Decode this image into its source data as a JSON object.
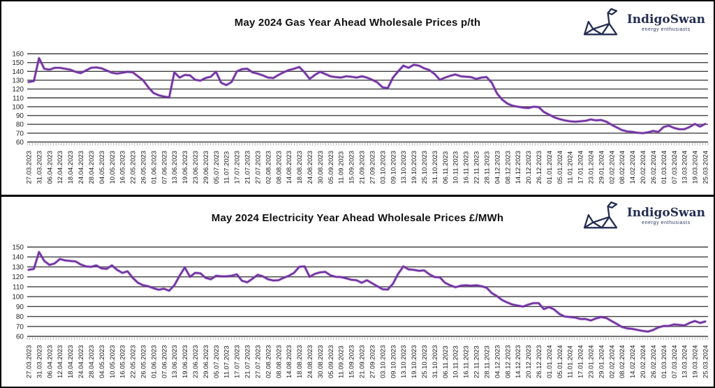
{
  "panels": [
    {
      "title": "May 2024 Gas Year Ahead Wholesale Prices p/th",
      "logo": {
        "name": "IndigoSwan",
        "tagline": "energy enthusiasts"
      }
    },
    {
      "title": "May 2024 Electricity Year Ahead Wholesale Prices £/MWh",
      "logo": {
        "name": "IndigoSwan",
        "tagline": "energy enthusiasts"
      }
    }
  ],
  "colors": {
    "line": "#7030A0",
    "line_halo": "#8a4fb5",
    "gridline": "#404040",
    "tick": "#9a9a9a",
    "axis_text": "#262626",
    "logo_navy": "#242e52",
    "title_text": "#111111"
  },
  "chart_data": [
    {
      "type": "line",
      "title": "May 2024 Gas Year Ahead Wholesale Prices p/th",
      "unit": "p/th",
      "legend_position": "none",
      "grid": "horizontal",
      "ylim": [
        60,
        160
      ],
      "yticks": [
        160,
        150,
        140,
        130,
        120,
        110,
        100,
        90,
        80,
        70,
        60
      ],
      "points_per_label_interval": 2,
      "x_labels": [
        "27.03.2023",
        "31.03.2023",
        "06.04.2023",
        "12.04.2023",
        "18.04.2023",
        "24.04.2023",
        "28.04.2023",
        "04.05.2023",
        "10.05.2023",
        "16.05.2023",
        "22.05.2023",
        "26.05.2023",
        "01.06.2023",
        "07.06.2023",
        "13.06.2023",
        "19.06.2023",
        "23.06.2023",
        "29.06.2023",
        "05.07.2023",
        "11.07.2023",
        "17.07.2023",
        "21.07.2023",
        "27.07.2023",
        "02.08.2023",
        "08.08.2023",
        "14.08.2023",
        "18.08.2023",
        "24.08.2023",
        "30.08.2023",
        "05.09.2023",
        "11.09.2023",
        "15.09.2023",
        "21.09.2023",
        "27.09.2023",
        "03.10.2023",
        "09.10.2023",
        "13.10.2023",
        "19.10.2023",
        "25.10.2023",
        "31.10.2023",
        "06.11.2023",
        "10.11.2023",
        "16.11.2023",
        "22.11.2023",
        "28.11.2023",
        "04.12.2023",
        "08.12.2023",
        "14.12.2023",
        "20.12.2023",
        "26.12.2023",
        "01.01.2024",
        "05.01.2024",
        "11.01.2024",
        "17.01.2024",
        "23.01.2024",
        "29.01.2024",
        "02.02.2024",
        "08.02.2024",
        "14.02.2024",
        "20.02.2024",
        "26.02.2024",
        "01.03.2024",
        "07.03.2024",
        "13.03.2024",
        "19.03.2024",
        "25.03.2024"
      ],
      "series": [
        {
          "name": "Gas Year Ahead p/th",
          "color": "#7030A0",
          "values": [
            128,
            129,
            155,
            143,
            142,
            144,
            144,
            143,
            142,
            139.5,
            138,
            141,
            144,
            144.5,
            143.5,
            141,
            138.5,
            137.5,
            138.5,
            139.5,
            139,
            134.5,
            130,
            122,
            115.5,
            113,
            111.5,
            110.5,
            139,
            133,
            136,
            135.5,
            130.5,
            129.5,
            132.5,
            134,
            139.5,
            127,
            124.5,
            128,
            140,
            142.5,
            143,
            139,
            137.5,
            135.5,
            133,
            132.5,
            136,
            139,
            141.5,
            143,
            145,
            139,
            131.5,
            136,
            139.5,
            137,
            134.5,
            133.5,
            133,
            134.5,
            134,
            133,
            134.5,
            133,
            130.5,
            127.5,
            122,
            121,
            133,
            140,
            146.5,
            144,
            147.5,
            146.5,
            143.5,
            141.5,
            137,
            130.5,
            133,
            135,
            136.5,
            134.5,
            134,
            133.5,
            131.5,
            133,
            133.5,
            127,
            115,
            108,
            103.5,
            101,
            100,
            99,
            98.5,
            100,
            99.5,
            94,
            91,
            88,
            86,
            84.5,
            83.5,
            83,
            83.5,
            84,
            85.5,
            84.5,
            85,
            83,
            79.5,
            76.5,
            73.5,
            72,
            71.5,
            70.5,
            70,
            71,
            72.5,
            71.5,
            77,
            78.5,
            76,
            74.5,
            74.5,
            77,
            80.5,
            77.5,
            80.5
          ]
        }
      ]
    },
    {
      "type": "line",
      "title": "May 2024 Electricity Year Ahead Wholesale Prices £/MWh",
      "unit": "£/MWh",
      "legend_position": "none",
      "grid": "horizontal",
      "ylim": [
        60,
        150
      ],
      "yticks": [
        150,
        140,
        130,
        120,
        110,
        100,
        90,
        80,
        70,
        60
      ],
      "points_per_label_interval": 2,
      "x_labels": [
        "27.03.2023",
        "31.03.2023",
        "06.04.2023",
        "12.04.2023",
        "18.04.2023",
        "24.04.2023",
        "28.04.2023",
        "04.05.2023",
        "10.05.2023",
        "16.05.2023",
        "22.05.2023",
        "26.05.2023",
        "01.06.2023",
        "07.06.2023",
        "13.06.2023",
        "19.06.2023",
        "23.06.2023",
        "29.06.2023",
        "05.07.2023",
        "11.07.2023",
        "17.07.2023",
        "21.07.2023",
        "27.07.2023",
        "02.08.2023",
        "08.08.2023",
        "14.08.2023",
        "18.08.2023",
        "24.08.2023",
        "30.08.2023",
        "05.09.2023",
        "11.09.2023",
        "15.09.2023",
        "21.09.2023",
        "27.09.2023",
        "03.10.2023",
        "09.10.2023",
        "13.10.2023",
        "19.10.2023",
        "25.10.2023",
        "31.10.2023",
        "06.11.2023",
        "10.11.2023",
        "16.11.2023",
        "22.11.2023",
        "28.11.2023",
        "04.12.2023",
        "08.12.2023",
        "14.12.2023",
        "20.12.2023",
        "26.12.2023",
        "01.01.2024",
        "05.01.2024",
        "11.01.2024",
        "17.01.2024",
        "23.01.2024",
        "29.01.2024",
        "02.02.2024",
        "08.02.2024",
        "14.02.2024",
        "20.02.2024",
        "26.02.2024",
        "01.03.2024",
        "07.03.2024",
        "13.03.2024",
        "19.03.2024",
        "25.03.2024"
      ],
      "series": [
        {
          "name": "Electricity Year Ahead £/MWh",
          "color": "#7030A0",
          "values": [
            127,
            128,
            145,
            136,
            132,
            133.5,
            138,
            136.5,
            136,
            135.5,
            132.5,
            130.5,
            130,
            131.5,
            128.5,
            128,
            131.5,
            127,
            124,
            125.5,
            119,
            114,
            111.5,
            110.5,
            108.5,
            107,
            108,
            106,
            111.5,
            121,
            129.5,
            120,
            124,
            123.5,
            119,
            117.5,
            121,
            120.5,
            120.5,
            121,
            122.5,
            116,
            114.5,
            118,
            122,
            120.5,
            117.5,
            116.3,
            116.5,
            119,
            121,
            124,
            130,
            130.5,
            120,
            123,
            124.5,
            125,
            121.5,
            120,
            119.8,
            118.5,
            117,
            116.5,
            114,
            116.5,
            113.5,
            110.5,
            107.5,
            107.2,
            113,
            123,
            130.5,
            127.5,
            127,
            126,
            126.5,
            122.5,
            119.8,
            119.5,
            114,
            111.5,
            109.5,
            111,
            111.5,
            111,
            111.5,
            110.5,
            109,
            103.5,
            100.5,
            96.5,
            94,
            92,
            91,
            90,
            92,
            93.5,
            93.5,
            87.5,
            89.5,
            87,
            82.5,
            80,
            79.5,
            79,
            77.5,
            77.5,
            76,
            78,
            79.5,
            78.5,
            75.5,
            72.5,
            69.5,
            68,
            67.5,
            66.5,
            65.5,
            64.8,
            66.5,
            69,
            70.5,
            70.5,
            72,
            71.5,
            71,
            73.5,
            75.5,
            73.5,
            75
          ]
        }
      ]
    }
  ]
}
